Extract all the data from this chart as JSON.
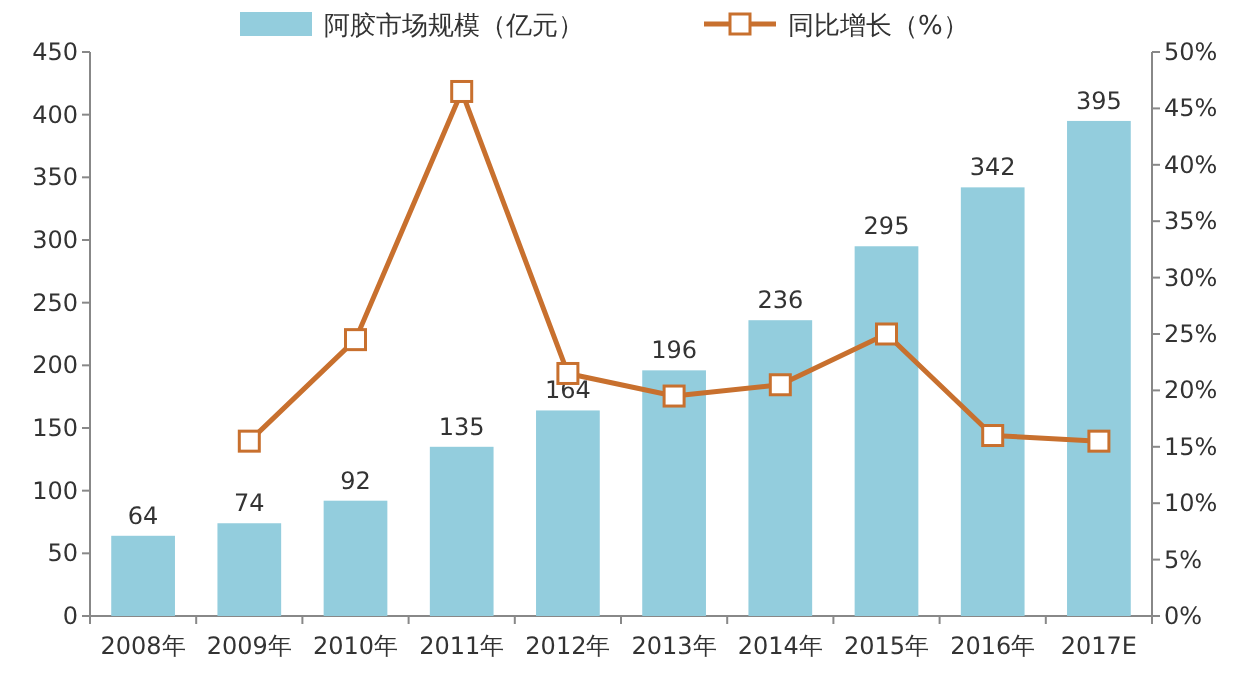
{
  "chart_data": {
    "type": "bar",
    "categories": [
      "2008年",
      "2009年",
      "2010年",
      "2011年",
      "2012年",
      "2013年",
      "2014年",
      "2015年",
      "2016年",
      "2017E"
    ],
    "series": [
      {
        "name": "阿胶市场规模（亿元）",
        "color": "#93cddd",
        "values": [
          64,
          74,
          92,
          135,
          164,
          196,
          236,
          295,
          342,
          395
        ],
        "value_labels": [
          "64",
          "74",
          "92",
          "135",
          "164",
          "196",
          "236",
          "295",
          "342",
          "395"
        ]
      },
      {
        "name": "同比增长（%）",
        "type": "line",
        "axis": "y2",
        "color": "#c8702e",
        "marker": "square",
        "values": [
          null,
          15.5,
          24.5,
          46.5,
          21.5,
          19.5,
          20.5,
          25,
          16,
          15.5
        ]
      }
    ],
    "ylim": [
      0,
      450
    ],
    "yticks": [
      0,
      50,
      100,
      150,
      200,
      250,
      300,
      350,
      400,
      450
    ],
    "y2lim": [
      0,
      50
    ],
    "y2ticks": [
      {
        "value": 0,
        "label": "0%"
      },
      {
        "value": 5,
        "label": "5%"
      },
      {
        "value": 10,
        "label": "10%"
      },
      {
        "value": 15,
        "label": "15%"
      },
      {
        "value": 20,
        "label": "20%"
      },
      {
        "value": 25,
        "label": "25%"
      },
      {
        "value": 30,
        "label": "30%"
      },
      {
        "value": 35,
        "label": "35%"
      },
      {
        "value": 40,
        "label": "40%"
      },
      {
        "value": 45,
        "label": "45%"
      },
      {
        "value": 50,
        "label": "50%"
      }
    ],
    "legend": "top",
    "grid": false
  }
}
